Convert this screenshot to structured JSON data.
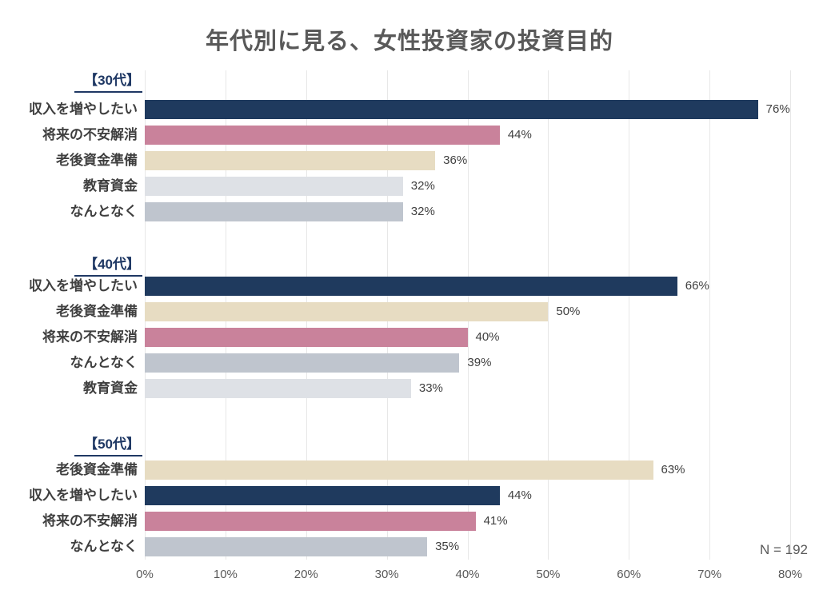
{
  "chart_data": {
    "type": "bar",
    "orientation": "horizontal",
    "title": "年代別に見る、女性投資家の投資目的",
    "note": "N = 192",
    "xlabel": "",
    "ylabel": "",
    "xlim": [
      0,
      80
    ],
    "x_ticks": [
      "0%",
      "10%",
      "20%",
      "30%",
      "40%",
      "50%",
      "60%",
      "70%",
      "80%"
    ],
    "grid": "vertical",
    "legend": "none",
    "colors": {
      "収入を増やしたい": "#1F3A5E",
      "将来の不安解消": "#C9829B",
      "老後資金準備": "#E7DCC2",
      "教育資金": "#DEE1E6",
      "なんとなく": "#BFC5CE"
    },
    "groups": [
      {
        "label": "【30代】",
        "bars": [
          {
            "category": "収入を増やしたい",
            "value": 76,
            "value_label": "76%"
          },
          {
            "category": "将来の不安解消",
            "value": 44,
            "value_label": "44%"
          },
          {
            "category": "老後資金準備",
            "value": 36,
            "value_label": "36%"
          },
          {
            "category": "教育資金",
            "value": 32,
            "value_label": "32%"
          },
          {
            "category": "なんとなく",
            "value": 32,
            "value_label": "32%"
          }
        ]
      },
      {
        "label": "【40代】",
        "bars": [
          {
            "category": "収入を増やしたい",
            "value": 66,
            "value_label": "66%"
          },
          {
            "category": "老後資金準備",
            "value": 50,
            "value_label": "50%"
          },
          {
            "category": "将来の不安解消",
            "value": 40,
            "value_label": "40%"
          },
          {
            "category": "なんとなく",
            "value": 39,
            "value_label": "39%"
          },
          {
            "category": "教育資金",
            "value": 33,
            "value_label": "33%"
          }
        ]
      },
      {
        "label": "【50代】",
        "bars": [
          {
            "category": "老後資金準備",
            "value": 63,
            "value_label": "63%"
          },
          {
            "category": "収入を増やしたい",
            "value": 44,
            "value_label": "44%"
          },
          {
            "category": "将来の不安解消",
            "value": 41,
            "value_label": "41%"
          },
          {
            "category": "なんとなく",
            "value": 35,
            "value_label": "35%"
          }
        ]
      }
    ]
  }
}
